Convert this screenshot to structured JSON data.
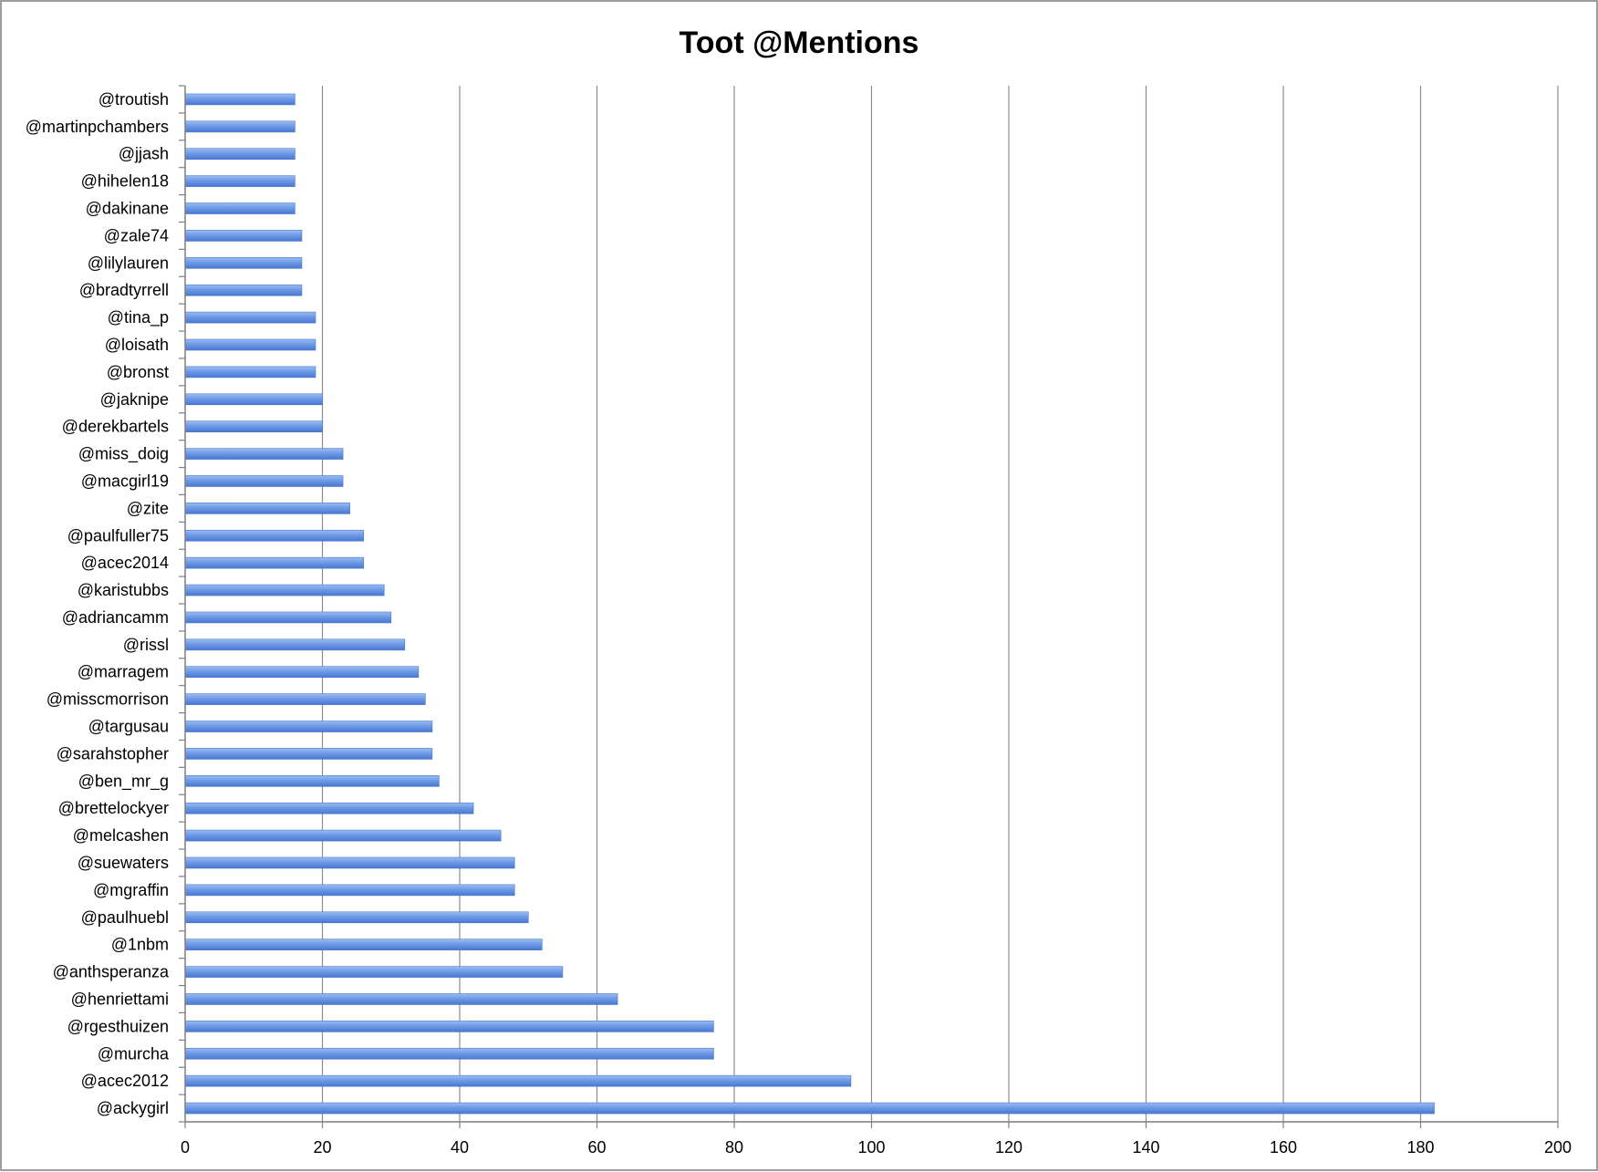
{
  "chart_data": {
    "type": "bar",
    "orientation": "horizontal",
    "title": "Toot @Mentions",
    "xlabel": "",
    "ylabel": "",
    "xlim": [
      0,
      200
    ],
    "x_ticks": [
      0,
      20,
      40,
      60,
      80,
      100,
      120,
      140,
      160,
      180,
      200
    ],
    "grid": "vertical",
    "legend": "none",
    "bar_color": "#6e9ae6",
    "bar_color_dark": "#4a78d0",
    "categories": [
      "@troutish",
      "@martinpchambers",
      "@jjash",
      "@hihelen18",
      "@dakinane",
      "@zale74",
      "@lilylauren",
      "@bradtyrrell",
      "@tina_p",
      "@loisath",
      "@bronst",
      "@jaknipe",
      "@derekbartels",
      "@miss_doig",
      "@macgirl19",
      "@zite",
      "@paulfuller75",
      "@acec2014",
      "@karistubbs",
      "@adriancamm",
      "@rissl",
      "@marragem",
      "@misscmorrison",
      "@targusau",
      "@sarahstopher",
      "@ben_mr_g",
      "@brettelockyer",
      "@melcashen",
      "@suewaters",
      "@mgraffin",
      "@paulhuebl",
      "@1nbm",
      "@anthsperanza",
      "@henriettami",
      "@rgesthuizen",
      "@murcha",
      "@acec2012",
      "@ackygirl"
    ],
    "values": [
      16,
      16,
      16,
      16,
      16,
      17,
      17,
      17,
      19,
      19,
      19,
      20,
      20,
      23,
      23,
      24,
      26,
      26,
      29,
      30,
      32,
      34,
      35,
      36,
      36,
      37,
      42,
      46,
      48,
      48,
      50,
      52,
      55,
      63,
      77,
      77,
      97,
      182
    ]
  }
}
